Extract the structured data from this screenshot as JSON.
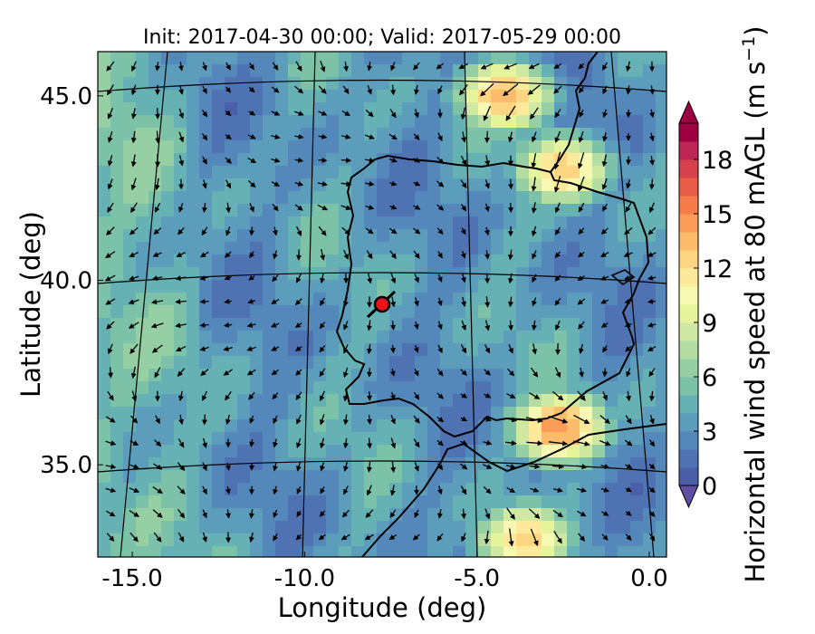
{
  "chart_data": {
    "type": "heatmap",
    "title": "Init: 2017-04-30 00:00; Valid: 2017-05-29 00:00",
    "xlabel": "Longitude (deg)",
    "ylabel": "Latitude (deg)",
    "xlim": [
      -16.0,
      0.5
    ],
    "ylim": [
      32.5,
      46.2
    ],
    "x_ticks": [
      {
        "value": -15.0,
        "label": "-15.0"
      },
      {
        "value": -10.0,
        "label": "-10.0"
      },
      {
        "value": -5.0,
        "label": "-5.0"
      },
      {
        "value": 0.0,
        "label": "0.0"
      }
    ],
    "y_ticks": [
      {
        "value": 35.0,
        "label": "35.0"
      },
      {
        "value": 40.0,
        "label": "40.0"
      },
      {
        "value": 45.0,
        "label": "45.0"
      }
    ],
    "graticule": {
      "meridians": [
        -15.0,
        -10.0,
        -5.0,
        0.0
      ],
      "parallels": [
        35.0,
        40.0,
        45.0
      ]
    },
    "colorbar": {
      "label": "Horizontal wind speed at 80 mAGL (m s^-1)",
      "label_text": "Horizontal wind speed at 80 mAGL (m s",
      "label_superscript": "−1",
      "label_close": ")",
      "min": 0,
      "max": 20,
      "extend": "both",
      "ticks": [
        {
          "value": 0,
          "label": "0"
        },
        {
          "value": 3,
          "label": "3"
        },
        {
          "value": 6,
          "label": "6"
        },
        {
          "value": 9,
          "label": "9"
        },
        {
          "value": 12,
          "label": "12"
        },
        {
          "value": 15,
          "label": "15"
        },
        {
          "value": 18,
          "label": "18"
        }
      ],
      "colors": [
        "#4a5fa8",
        "#4f73b2",
        "#5488bb",
        "#5b9dba",
        "#66b1b3",
        "#7bc2a8",
        "#96cfa3",
        "#b3dda3",
        "#cfe9a2",
        "#e6f49c",
        "#f7f9b2",
        "#fde99a",
        "#fed582",
        "#fdbb6c",
        "#fb9d58",
        "#f67d4a",
        "#e85c47",
        "#d7414e",
        "#bd2656",
        "#9e0142"
      ],
      "under_color": "#5e4fa2",
      "over_color": "#9e0142"
    },
    "wind_field": {
      "units": "m s^-1",
      "speed_maxima": [
        {
          "lon": -4.2,
          "lat": 45.0,
          "speed": 14
        },
        {
          "lon": -2.5,
          "lat": 43.0,
          "speed": 13
        },
        {
          "lon": -2.6,
          "lat": 36.0,
          "speed": 15
        },
        {
          "lon": -3.6,
          "lat": 33.0,
          "speed": 13
        }
      ]
    },
    "marker": {
      "lon": -7.65,
      "lat": 39.35,
      "color": "#e8141b"
    },
    "colors": {
      "coastline": "#000000",
      "marker_fill": "#e8141b",
      "marker_edge": "#000000"
    }
  }
}
